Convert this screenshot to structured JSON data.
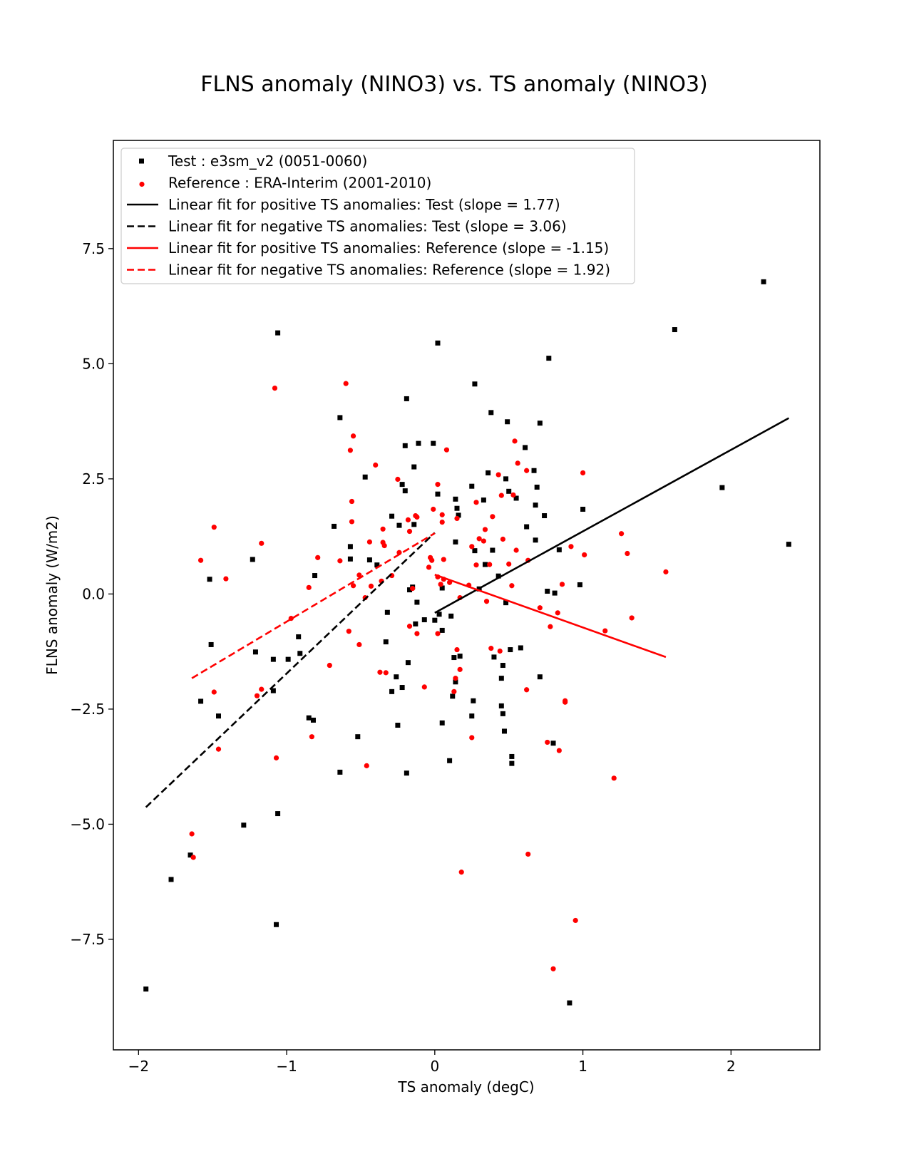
{
  "chart_data": {
    "type": "scatter",
    "title": "FLNS anomaly (NINO3) vs. TS anomaly (NINO3)",
    "xlabel": "TS anomaly (degC)",
    "ylabel": "FLNS anomaly (W/m2)",
    "xlim": [
      -2.17,
      2.6
    ],
    "ylim": [
      -9.9,
      9.85
    ],
    "xticks": [
      -2,
      -1,
      0,
      1,
      2
    ],
    "xtick_labels": [
      "−2",
      "−1",
      "0",
      "1",
      "2"
    ],
    "yticks": [
      -7.5,
      -5.0,
      -2.5,
      0.0,
      2.5,
      5.0,
      7.5
    ],
    "ytick_labels": [
      "−7.5",
      "−5.0",
      "−2.5",
      "0.0",
      "2.5",
      "5.0",
      "7.5"
    ],
    "grid": false,
    "legend_position": "top-left",
    "colors": {
      "test": "#000000",
      "reference": "#ff0000"
    },
    "series": [
      {
        "name": "Test : e3sm_v2 (0051-0060)",
        "marker": "square",
        "color": "#000000",
        "points": [
          [
            -1.95,
            -8.58
          ],
          [
            -1.78,
            -6.2
          ],
          [
            -1.65,
            -5.67
          ],
          [
            -1.58,
            -2.33
          ],
          [
            -1.52,
            0.32
          ],
          [
            -1.51,
            -1.1
          ],
          [
            -1.46,
            -2.65
          ],
          [
            -1.29,
            -5.02
          ],
          [
            -1.23,
            0.75
          ],
          [
            -1.21,
            -1.26
          ],
          [
            -1.09,
            -1.42
          ],
          [
            -1.09,
            -2.1
          ],
          [
            -1.07,
            -7.18
          ],
          [
            -1.06,
            -4.77
          ],
          [
            -1.06,
            5.67
          ],
          [
            -0.99,
            -1.42
          ],
          [
            -0.92,
            -0.93
          ],
          [
            -0.91,
            -1.29
          ],
          [
            -0.85,
            -2.69
          ],
          [
            -0.82,
            -2.74
          ],
          [
            -0.81,
            0.4
          ],
          [
            -0.68,
            1.47
          ],
          [
            -0.64,
            3.83
          ],
          [
            -0.64,
            -3.87
          ],
          [
            -0.57,
            1.03
          ],
          [
            -0.57,
            0.76
          ],
          [
            -0.52,
            -3.1
          ],
          [
            -0.47,
            2.54
          ],
          [
            -0.44,
            0.74
          ],
          [
            -0.39,
            0.63
          ],
          [
            -0.33,
            -1.04
          ],
          [
            -0.32,
            -0.4
          ],
          [
            -0.29,
            -2.12
          ],
          [
            -0.29,
            1.69
          ],
          [
            -0.26,
            -1.8
          ],
          [
            -0.25,
            -2.85
          ],
          [
            -0.24,
            1.49
          ],
          [
            -0.22,
            2.38
          ],
          [
            -0.22,
            -2.03
          ],
          [
            -0.2,
            2.24
          ],
          [
            -0.2,
            3.22
          ],
          [
            -0.19,
            4.24
          ],
          [
            -0.19,
            -3.89
          ],
          [
            -0.18,
            -1.49
          ],
          [
            -0.17,
            0.09
          ],
          [
            -0.15,
            0.15
          ],
          [
            -0.14,
            1.51
          ],
          [
            -0.14,
            2.76
          ],
          [
            -0.13,
            -0.65
          ],
          [
            -0.12,
            -0.18
          ],
          [
            -0.11,
            3.27
          ],
          [
            -0.07,
            -0.56
          ],
          [
            -0.01,
            3.27
          ],
          [
            0.0,
            -0.57
          ],
          [
            0.02,
            5.45
          ],
          [
            0.02,
            2.17
          ],
          [
            0.03,
            -0.44
          ],
          [
            0.05,
            -2.8
          ],
          [
            0.05,
            0.13
          ],
          [
            0.05,
            -0.79
          ],
          [
            0.1,
            -3.62
          ],
          [
            0.11,
            -0.48
          ],
          [
            0.12,
            -2.22
          ],
          [
            0.13,
            -1.38
          ],
          [
            0.14,
            -1.91
          ],
          [
            0.14,
            2.06
          ],
          [
            0.14,
            1.13
          ],
          [
            0.15,
            1.86
          ],
          [
            0.16,
            1.71
          ],
          [
            0.17,
            -1.35
          ],
          [
            0.25,
            2.34
          ],
          [
            0.25,
            -2.65
          ],
          [
            0.26,
            -2.32
          ],
          [
            0.27,
            4.56
          ],
          [
            0.27,
            0.94
          ],
          [
            0.3,
            0.11
          ],
          [
            0.33,
            2.04
          ],
          [
            0.34,
            0.64
          ],
          [
            0.36,
            2.63
          ],
          [
            0.38,
            3.94
          ],
          [
            0.39,
            0.95
          ],
          [
            0.4,
            -1.37
          ],
          [
            0.43,
            0.39
          ],
          [
            0.45,
            -1.83
          ],
          [
            0.45,
            -2.43
          ],
          [
            0.46,
            -1.55
          ],
          [
            0.46,
            -2.6
          ],
          [
            0.47,
            -2.98
          ],
          [
            0.48,
            -0.19
          ],
          [
            0.48,
            2.5
          ],
          [
            0.49,
            3.74
          ],
          [
            0.5,
            2.23
          ],
          [
            0.51,
            -1.21
          ],
          [
            0.52,
            -3.53
          ],
          [
            0.52,
            -3.68
          ],
          [
            0.55,
            2.08
          ],
          [
            0.58,
            -1.17
          ],
          [
            0.61,
            3.18
          ],
          [
            0.62,
            1.46
          ],
          [
            0.67,
            2.68
          ],
          [
            0.68,
            1.93
          ],
          [
            0.68,
            1.17
          ],
          [
            0.69,
            2.32
          ],
          [
            0.71,
            -1.8
          ],
          [
            0.71,
            3.71
          ],
          [
            0.74,
            1.7
          ],
          [
            0.76,
            0.06
          ],
          [
            0.77,
            5.12
          ],
          [
            0.8,
            -3.24
          ],
          [
            0.81,
            0.02
          ],
          [
            0.84,
            0.96
          ],
          [
            0.91,
            -8.88
          ],
          [
            0.98,
            0.2
          ],
          [
            1.0,
            1.84
          ],
          [
            1.62,
            5.74
          ],
          [
            1.94,
            2.31
          ],
          [
            2.22,
            6.78
          ],
          [
            2.39,
            1.08
          ]
        ]
      },
      {
        "name": "Reference : ERA-Interim (2001-2010)",
        "marker": "circle",
        "color": "#ff0000",
        "points": [
          [
            -1.64,
            -5.21
          ],
          [
            -1.63,
            -5.72
          ],
          [
            -1.58,
            0.73
          ],
          [
            -1.49,
            1.45
          ],
          [
            -1.49,
            -2.13
          ],
          [
            -1.46,
            -3.37
          ],
          [
            -1.41,
            0.33
          ],
          [
            -1.2,
            -2.21
          ],
          [
            -1.17,
            1.1
          ],
          [
            -1.17,
            -2.07
          ],
          [
            -1.08,
            4.47
          ],
          [
            -1.07,
            -3.56
          ],
          [
            -0.97,
            -0.53
          ],
          [
            -0.85,
            0.14
          ],
          [
            -0.83,
            -3.1
          ],
          [
            -0.79,
            0.79
          ],
          [
            -0.71,
            -1.55
          ],
          [
            -0.64,
            0.72
          ],
          [
            -0.6,
            4.57
          ],
          [
            -0.58,
            -0.81
          ],
          [
            -0.57,
            3.12
          ],
          [
            -0.56,
            1.57
          ],
          [
            -0.56,
            2.01
          ],
          [
            -0.55,
            3.43
          ],
          [
            -0.55,
            0.18
          ],
          [
            -0.51,
            -1.1
          ],
          [
            -0.51,
            0.41
          ],
          [
            -0.47,
            -0.08
          ],
          [
            -0.46,
            -3.73
          ],
          [
            -0.44,
            1.13
          ],
          [
            -0.43,
            0.17
          ],
          [
            -0.4,
            2.8
          ],
          [
            -0.37,
            -1.7
          ],
          [
            -0.36,
            0.28
          ],
          [
            -0.35,
            1.12
          ],
          [
            -0.35,
            1.41
          ],
          [
            -0.34,
            1.05
          ],
          [
            -0.33,
            -1.71
          ],
          [
            -0.29,
            0.4
          ],
          [
            -0.25,
            2.49
          ],
          [
            -0.24,
            0.9
          ],
          [
            -0.18,
            1.61
          ],
          [
            -0.17,
            1.36
          ],
          [
            -0.17,
            -0.7
          ],
          [
            -0.15,
            0.12
          ],
          [
            -0.13,
            1.7
          ],
          [
            -0.12,
            1.67
          ],
          [
            -0.12,
            -0.86
          ],
          [
            -0.07,
            -2.02
          ],
          [
            -0.04,
            0.58
          ],
          [
            -0.03,
            0.79
          ],
          [
            -0.02,
            0.73
          ],
          [
            -0.01,
            1.84
          ],
          [
            0.02,
            2.38
          ],
          [
            0.02,
            0.37
          ],
          [
            0.02,
            -0.86
          ],
          [
            0.04,
            0.21
          ],
          [
            0.05,
            1.72
          ],
          [
            0.05,
            1.56
          ],
          [
            0.06,
            0.75
          ],
          [
            0.06,
            0.32
          ],
          [
            0.08,
            3.13
          ],
          [
            0.1,
            0.25
          ],
          [
            0.13,
            -2.12
          ],
          [
            0.14,
            -1.83
          ],
          [
            0.15,
            -1.21
          ],
          [
            0.15,
            1.64
          ],
          [
            0.17,
            -0.08
          ],
          [
            0.17,
            -1.64
          ],
          [
            0.18,
            -6.04
          ],
          [
            0.23,
            0.19
          ],
          [
            0.25,
            1.03
          ],
          [
            0.25,
            -3.12
          ],
          [
            0.28,
            1.99
          ],
          [
            0.28,
            0.63
          ],
          [
            0.3,
            1.2
          ],
          [
            0.33,
            1.15
          ],
          [
            0.34,
            1.4
          ],
          [
            0.35,
            -0.16
          ],
          [
            0.37,
            0.64
          ],
          [
            0.38,
            -1.18
          ],
          [
            0.39,
            1.68
          ],
          [
            0.43,
            2.59
          ],
          [
            0.44,
            -1.24
          ],
          [
            0.45,
            2.14
          ],
          [
            0.46,
            1.19
          ],
          [
            0.5,
            0.65
          ],
          [
            0.52,
            0.18
          ],
          [
            0.53,
            2.15
          ],
          [
            0.54,
            3.32
          ],
          [
            0.55,
            0.95
          ],
          [
            0.56,
            2.84
          ],
          [
            0.62,
            -2.08
          ],
          [
            0.62,
            2.68
          ],
          [
            0.63,
            0.73
          ],
          [
            0.63,
            -5.65
          ],
          [
            0.71,
            -0.3
          ],
          [
            0.76,
            -3.22
          ],
          [
            0.78,
            -0.71
          ],
          [
            0.8,
            -8.14
          ],
          [
            0.83,
            -0.41
          ],
          [
            0.84,
            -3.4
          ],
          [
            0.86,
            0.21
          ],
          [
            0.88,
            -2.32
          ],
          [
            0.88,
            -2.35
          ],
          [
            0.92,
            1.03
          ],
          [
            0.95,
            -7.09
          ],
          [
            1.0,
            2.63
          ],
          [
            1.01,
            0.85
          ],
          [
            1.15,
            -0.8
          ],
          [
            1.21,
            -4.0
          ],
          [
            1.26,
            1.31
          ],
          [
            1.3,
            0.88
          ],
          [
            1.33,
            -0.52
          ],
          [
            1.56,
            0.48
          ]
        ]
      },
      {
        "name": "Linear fit for positive TS anomalies: Test (slope = 1.77)",
        "style": "solid",
        "color": "#000000",
        "points": [
          [
            0.0,
            -0.41
          ],
          [
            2.39,
            3.82
          ]
        ]
      },
      {
        "name": "Linear fit for negative TS anomalies: Test (slope = 3.06)",
        "style": "dashed",
        "color": "#000000",
        "points": [
          [
            -1.95,
            -4.63
          ],
          [
            0.0,
            1.33
          ]
        ]
      },
      {
        "name": "Linear fit for positive TS anomalies: Reference (slope = -1.15)",
        "style": "solid",
        "color": "#ff0000",
        "points": [
          [
            0.0,
            0.42
          ],
          [
            1.56,
            -1.37
          ]
        ]
      },
      {
        "name": "Linear fit for negative TS anomalies: Reference (slope = 1.92)",
        "style": "dashed",
        "color": "#ff0000",
        "points": [
          [
            -1.64,
            -1.83
          ],
          [
            0.0,
            1.32
          ]
        ]
      }
    ]
  }
}
